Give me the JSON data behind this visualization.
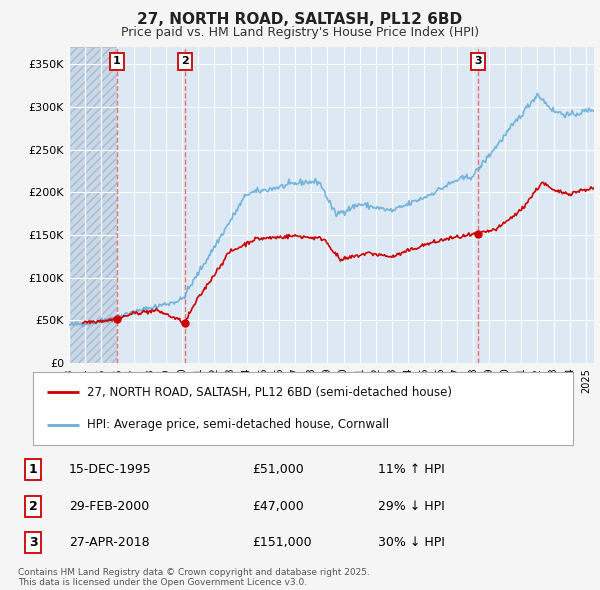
{
  "title": "27, NORTH ROAD, SALTASH, PL12 6BD",
  "subtitle": "Price paid vs. HM Land Registry's House Price Index (HPI)",
  "legend_house": "27, NORTH ROAD, SALTASH, PL12 6BD (semi-detached house)",
  "legend_hpi": "HPI: Average price, semi-detached house, Cornwall",
  "footer": "Contains HM Land Registry data © Crown copyright and database right 2025.\nThis data is licensed under the Open Government Licence v3.0.",
  "sale_markers": [
    {
      "label": "1",
      "date": "15-DEC-1995",
      "price": "£51,000",
      "hpi_note": "11% ↑ HPI",
      "x_year": 1995.96
    },
    {
      "label": "2",
      "date": "29-FEB-2000",
      "price": "£47,000",
      "hpi_note": "29% ↓ HPI",
      "x_year": 2000.16
    },
    {
      "label": "3",
      "date": "27-APR-2018",
      "price": "£151,000",
      "hpi_note": "30% ↓ HPI",
      "x_year": 2018.32
    }
  ],
  "sale_prices": [
    51000,
    47000,
    151000
  ],
  "hpi_color": "#6baed6",
  "house_color": "#cc0000",
  "vline_color": "#e87070",
  "background_color": "#dce9f5",
  "grid_color": "#ffffff",
  "ylim": [
    0,
    370000
  ],
  "yticks": [
    0,
    50000,
    100000,
    150000,
    200000,
    250000,
    300000,
    350000
  ],
  "xlim_start": 1993.0,
  "xlim_end": 2025.5,
  "fig_bg": "#f5f5f5"
}
